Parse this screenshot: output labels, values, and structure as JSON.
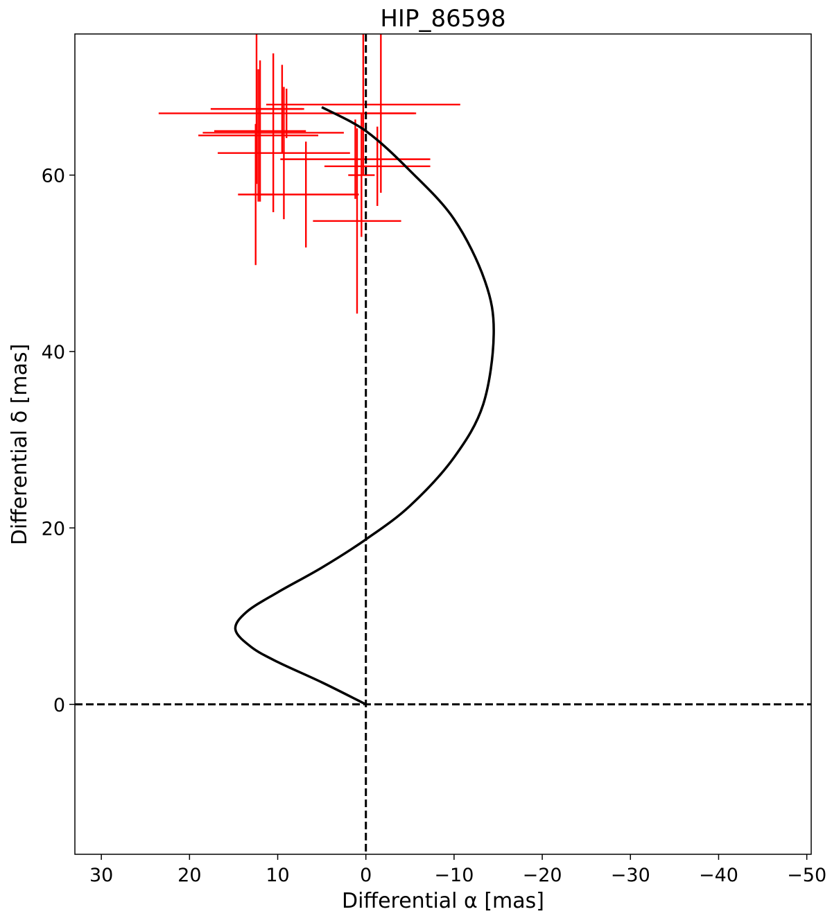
{
  "chart_data": {
    "type": "scatter",
    "title": "HIP_86598",
    "xlabel": "Differential α [mas]",
    "ylabel": "Differential δ [mas]",
    "xlim": [
      33,
      -50.5
    ],
    "ylim": [
      -17,
      76
    ],
    "x_ticks": [
      30,
      20,
      10,
      0,
      -10,
      -20,
      -30,
      -40,
      -50
    ],
    "x_tick_labels": [
      "30",
      "20",
      "10",
      "0",
      "−10",
      "−20",
      "−30",
      "−40",
      "−50"
    ],
    "y_ticks": [
      0,
      20,
      40,
      60
    ],
    "y_tick_labels": [
      "0",
      "20",
      "40",
      "60"
    ],
    "grid": false,
    "reference_lines": [
      {
        "orientation": "vertical",
        "value": 0,
        "style": "dashed",
        "color": "#000000"
      },
      {
        "orientation": "horizontal",
        "value": 0,
        "style": "dashed",
        "color": "#000000"
      }
    ],
    "series": [
      {
        "kind": "curve",
        "color": "#000000",
        "points": [
          [
            0,
            0
          ],
          [
            5,
            2.5
          ],
          [
            10,
            4.8
          ],
          [
            13,
            6.5
          ],
          [
            14.8,
            8.5
          ],
          [
            13.5,
            10.5
          ],
          [
            10,
            12.7
          ],
          [
            5,
            15.5
          ],
          [
            0,
            18.7
          ],
          [
            -5,
            22.5
          ],
          [
            -10,
            28
          ],
          [
            -13.3,
            34
          ],
          [
            -14.5,
            42
          ],
          [
            -13.5,
            48
          ],
          [
            -10,
            55
          ],
          [
            -5,
            60.5
          ],
          [
            0,
            65
          ],
          [
            5,
            67.7
          ]
        ]
      },
      {
        "kind": "errorbar",
        "color": "#ff0000",
        "points": [
          {
            "x": 12.4,
            "y": 67.5,
            "xerr": 5.2,
            "yerr": 8.5
          },
          {
            "x": 12.2,
            "y": 64.5,
            "xerr": 6.8,
            "yerr": 7.5
          },
          {
            "x": 12.0,
            "y": 65.0,
            "xerr": 5.2,
            "yerr": 8.0
          },
          {
            "x": 9.0,
            "y": 67.0,
            "xerr": 14.5,
            "yerr": 2.8
          },
          {
            "x": 10.5,
            "y": 64.8,
            "xerr": 8.0,
            "yerr": 9.0
          },
          {
            "x": 9.5,
            "y": 67.5,
            "xerr": 2.5,
            "yerr": 5.0
          },
          {
            "x": 9.3,
            "y": 62.5,
            "xerr": 7.5,
            "yerr": 7.5
          },
          {
            "x": 12.5,
            "y": 57.8,
            "xerr": 2.0,
            "yerr": 8.0
          },
          {
            "x": 6.8,
            "y": 57.8,
            "xerr": 6.0,
            "yerr": 6.0
          },
          {
            "x": 0.3,
            "y": 68.0,
            "xerr": 11.0,
            "yerr": 8.0
          },
          {
            "x": 1.2,
            "y": 61.8,
            "xerr": 8.5,
            "yerr": 4.5
          },
          {
            "x": -1.7,
            "y": 67.0,
            "xerr": 4.0,
            "yerr": 9.0
          },
          {
            "x": 1.0,
            "y": 54.8,
            "xerr": 5.0,
            "yerr": 10.5
          },
          {
            "x": 0.5,
            "y": 60.0,
            "xerr": 1.5,
            "yerr": 7.0
          },
          {
            "x": -1.3,
            "y": 61.0,
            "xerr": 6.0,
            "yerr": 4.5
          }
        ]
      }
    ]
  }
}
